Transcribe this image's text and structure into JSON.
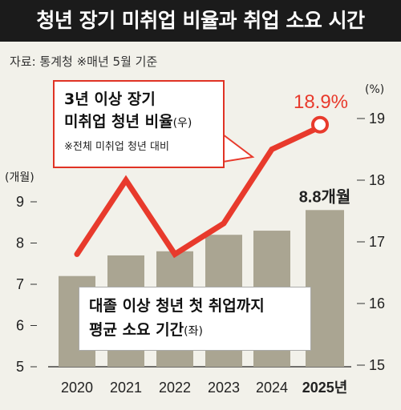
{
  "title": "청년 장기 미취업 비율과 취업 소요 시간",
  "source": "자료: 통계청  ※매년 5월 기준",
  "callout": {
    "line1": "3년 이상 장기",
    "line2_main": "미취업 청년 비율",
    "line2_side": "(우)",
    "note": "※전체 미취업 청년 대비"
  },
  "bar_box": {
    "line1": "대졸 이상 청년 첫 취업까지",
    "line2_main": "평균 소요 기간",
    "line2_side": "(좌)"
  },
  "colors": {
    "bar": "#aaa592",
    "line": "#e83a2c",
    "background": "#f2f1ea",
    "title_bg": "#1b1b1b"
  },
  "chart_data": {
    "type": "bar",
    "categories": [
      "2020",
      "2021",
      "2022",
      "2023",
      "2024",
      "2025년"
    ],
    "left_axis": {
      "unit": "(개월)",
      "ticks": [
        "9",
        "8",
        "7",
        "6",
        "5"
      ],
      "range": [
        5,
        9.8
      ]
    },
    "right_axis": {
      "unit": "(%)",
      "ticks": [
        "19",
        "18",
        "17",
        "16",
        "15"
      ],
      "range": [
        15,
        19.3
      ]
    },
    "series": [
      {
        "kind": "bar",
        "axis": "left",
        "values": [
          7.2,
          7.7,
          7.8,
          8.2,
          8.3,
          8.8
        ],
        "last_label": "8.8개월"
      },
      {
        "kind": "line",
        "axis": "right",
        "values": [
          16.8,
          18.0,
          16.8,
          17.3,
          18.5,
          18.9
        ],
        "last_label": "18.9%"
      }
    ]
  }
}
